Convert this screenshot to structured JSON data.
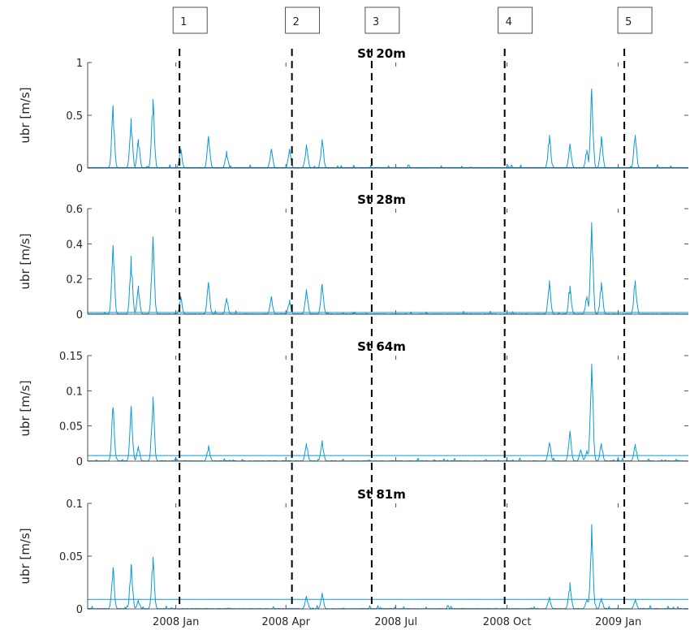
{
  "chart_data": {
    "type": "line",
    "ylabel": "ubr [m/s]",
    "x_ticks": [
      "2008 Jan",
      "2008 Apr",
      "2008 Jul",
      "2008 Oct",
      "2009 Jan"
    ],
    "x_tick_dates": [
      "2008-01-01",
      "2008-04-01",
      "2008-07-01",
      "2008-10-01",
      "2009-01-01"
    ],
    "xlim": [
      "2007-10-20",
      "2009-02-28"
    ],
    "events": [
      {
        "label": "1",
        "date": "2008-01-04"
      },
      {
        "label": "2",
        "date": "2008-04-06"
      },
      {
        "label": "3",
        "date": "2008-06-11"
      },
      {
        "label": "4",
        "date": "2008-09-29"
      },
      {
        "label": "5",
        "date": "2009-01-06"
      }
    ],
    "panels": [
      {
        "title": "St 20m",
        "ylim": [
          0,
          1
        ],
        "yticks": [
          "0",
          "0.5",
          "1"
        ],
        "ytick_values": [
          0,
          0.5,
          1
        ],
        "threshold": 0.005,
        "peaks": [
          {
            "date": "2007-11-10",
            "value": 0.59
          },
          {
            "date": "2007-11-25",
            "value": 0.47
          },
          {
            "date": "2007-12-01",
            "value": 0.27
          },
          {
            "date": "2007-12-13",
            "value": 0.65
          },
          {
            "date": "2008-01-05",
            "value": 0.18
          },
          {
            "date": "2008-01-28",
            "value": 0.3
          },
          {
            "date": "2008-02-12",
            "value": 0.16
          },
          {
            "date": "2008-03-20",
            "value": 0.18
          },
          {
            "date": "2008-04-04",
            "value": 0.18
          },
          {
            "date": "2008-04-18",
            "value": 0.22
          },
          {
            "date": "2008-05-01",
            "value": 0.27
          },
          {
            "date": "2008-11-05",
            "value": 0.31
          },
          {
            "date": "2008-11-22",
            "value": 0.23
          },
          {
            "date": "2008-12-06",
            "value": 0.17
          },
          {
            "date": "2008-12-10",
            "value": 0.75
          },
          {
            "date": "2008-12-18",
            "value": 0.3
          },
          {
            "date": "2009-01-15",
            "value": 0.31
          }
        ]
      },
      {
        "title": "St 28m",
        "ylim": [
          0,
          0.6
        ],
        "yticks": [
          "0",
          "0.2",
          "0.4",
          "0.6"
        ],
        "ytick_values": [
          0,
          0.2,
          0.4,
          0.6
        ],
        "threshold": 0.01,
        "peaks": [
          {
            "date": "2007-11-10",
            "value": 0.39
          },
          {
            "date": "2007-11-25",
            "value": 0.33
          },
          {
            "date": "2007-12-01",
            "value": 0.16
          },
          {
            "date": "2007-12-13",
            "value": 0.44
          },
          {
            "date": "2008-01-05",
            "value": 0.1
          },
          {
            "date": "2008-01-28",
            "value": 0.18
          },
          {
            "date": "2008-02-12",
            "value": 0.09
          },
          {
            "date": "2008-03-20",
            "value": 0.1
          },
          {
            "date": "2008-04-04",
            "value": 0.08
          },
          {
            "date": "2008-04-18",
            "value": 0.14
          },
          {
            "date": "2008-05-01",
            "value": 0.17
          },
          {
            "date": "2008-11-05",
            "value": 0.19
          },
          {
            "date": "2008-11-22",
            "value": 0.16
          },
          {
            "date": "2008-12-06",
            "value": 0.1
          },
          {
            "date": "2008-12-10",
            "value": 0.52
          },
          {
            "date": "2008-12-18",
            "value": 0.18
          },
          {
            "date": "2009-01-15",
            "value": 0.19
          }
        ]
      },
      {
        "title": "St 64m",
        "ylim": [
          0,
          0.15
        ],
        "yticks": [
          "0",
          "0.05",
          "0.1",
          "0.15"
        ],
        "ytick_values": [
          0,
          0.05,
          0.1,
          0.15
        ],
        "threshold": 0.008,
        "peaks": [
          {
            "date": "2007-11-10",
            "value": 0.076
          },
          {
            "date": "2007-11-25",
            "value": 0.078
          },
          {
            "date": "2007-12-01",
            "value": 0.021
          },
          {
            "date": "2007-12-13",
            "value": 0.091
          },
          {
            "date": "2008-01-28",
            "value": 0.022
          },
          {
            "date": "2008-04-18",
            "value": 0.025
          },
          {
            "date": "2008-05-01",
            "value": 0.029
          },
          {
            "date": "2008-11-05",
            "value": 0.026
          },
          {
            "date": "2008-11-22",
            "value": 0.043
          },
          {
            "date": "2008-12-01",
            "value": 0.016
          },
          {
            "date": "2008-12-06",
            "value": 0.015
          },
          {
            "date": "2008-12-10",
            "value": 0.138
          },
          {
            "date": "2008-12-18",
            "value": 0.025
          },
          {
            "date": "2009-01-15",
            "value": 0.024
          }
        ]
      },
      {
        "title": "St 81m",
        "ylim": [
          0,
          0.1
        ],
        "yticks": [
          "0",
          "0.05",
          "0.1"
        ],
        "ytick_values": [
          0,
          0.05,
          0.1
        ],
        "threshold": 0.009,
        "peaks": [
          {
            "date": "2007-11-10",
            "value": 0.039
          },
          {
            "date": "2007-11-25",
            "value": 0.042
          },
          {
            "date": "2007-12-01",
            "value": 0.008
          },
          {
            "date": "2007-12-13",
            "value": 0.049
          },
          {
            "date": "2008-04-18",
            "value": 0.012
          },
          {
            "date": "2008-05-01",
            "value": 0.015
          },
          {
            "date": "2008-11-05",
            "value": 0.011
          },
          {
            "date": "2008-11-22",
            "value": 0.025
          },
          {
            "date": "2008-12-06",
            "value": 0.009
          },
          {
            "date": "2008-12-10",
            "value": 0.08
          },
          {
            "date": "2008-12-18",
            "value": 0.01
          },
          {
            "date": "2009-01-15",
            "value": 0.009
          }
        ]
      }
    ],
    "grid": false,
    "color": "#0a9ad7"
  }
}
